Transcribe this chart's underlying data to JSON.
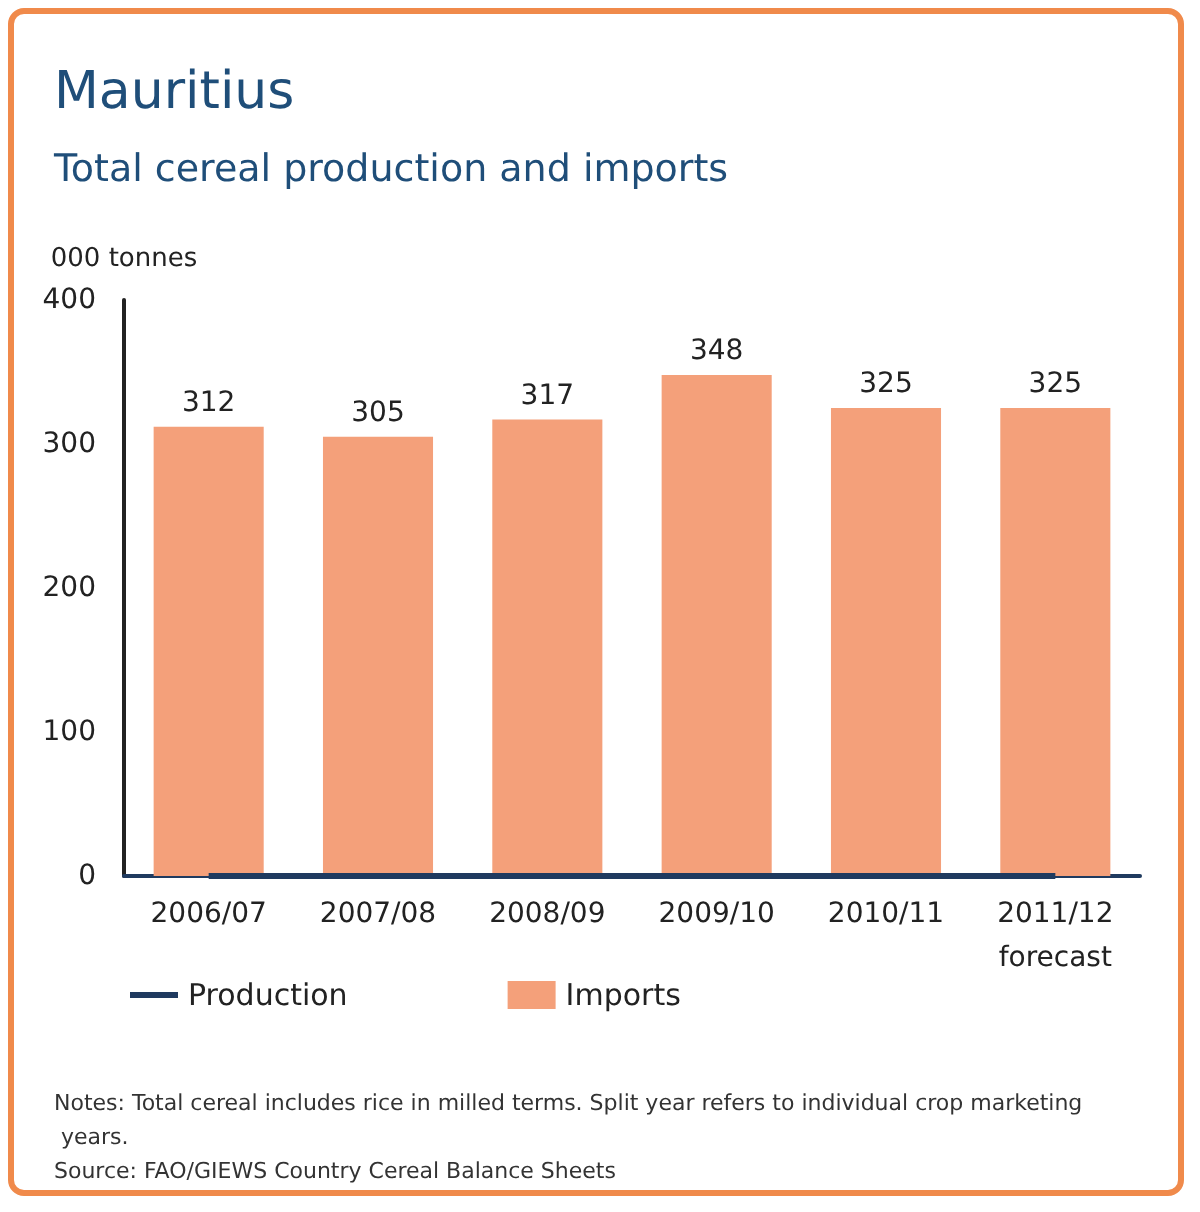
{
  "chart_data": {
    "type": "bar",
    "title": "Mauritius",
    "subtitle": "Total cereal production and imports",
    "ylabel": "000 tonnes",
    "categories": [
      "2006/07",
      "2007/08",
      "2008/09",
      "2009/10",
      "2010/11",
      "2011/12\nforecast"
    ],
    "series": [
      {
        "name": "Production",
        "type": "line",
        "color": "#1f3a5f",
        "values": [
          0,
          0,
          0,
          0,
          0,
          0
        ]
      },
      {
        "name": "Imports",
        "color": "#f4a07a",
        "values": [
          312,
          305,
          317,
          348,
          325,
          325
        ],
        "value_labels": [
          "312",
          "305",
          "317",
          "348",
          "325",
          "325"
        ]
      }
    ],
    "ylim": [
      0,
      400
    ],
    "yticks": [
      0,
      100,
      200,
      300,
      400
    ],
    "grid": false,
    "legend": "bottom left",
    "marker": "none",
    "annotations": [
      "Notes: Total cereal includes rice in milled terms. Split year refers to individual crop marketing years.",
      "Source: FAO/GIEWS Country Cereal Balance Sheets"
    ]
  }
}
